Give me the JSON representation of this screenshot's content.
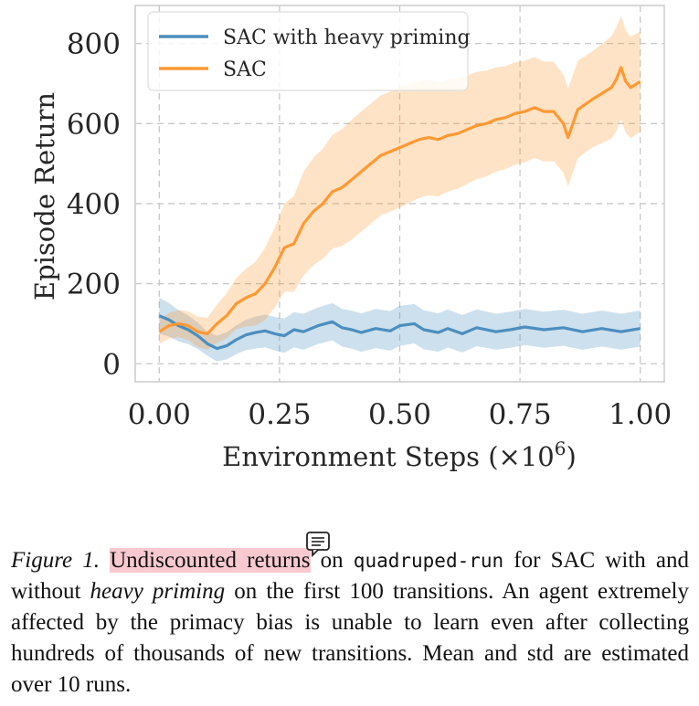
{
  "chart_data": {
    "type": "line",
    "xlabel": "Environment Steps (×10",
    "xlabel_exp": "6",
    "xlabel_close": ")",
    "ylabel": "Episode Return",
    "xlim": [
      -0.05,
      1.05
    ],
    "ylim": [
      -45,
      895
    ],
    "xticks": [
      0.0,
      0.25,
      0.5,
      0.75,
      1.0
    ],
    "xtick_labels": [
      "0.00",
      "0.25",
      "0.50",
      "0.75",
      "1.00"
    ],
    "yticks": [
      0,
      200,
      400,
      600,
      800
    ],
    "ytick_labels": [
      "0",
      "200",
      "400",
      "600",
      "800"
    ],
    "grid": true,
    "legend_position": "top-left",
    "series": [
      {
        "name": "SAC with heavy priming",
        "color": "#4c8ebf",
        "points": [
          [
            0.0,
            120
          ],
          [
            0.02,
            110
          ],
          [
            0.04,
            95
          ],
          [
            0.06,
            85
          ],
          [
            0.08,
            70
          ],
          [
            0.1,
            50
          ],
          [
            0.12,
            38
          ],
          [
            0.14,
            45
          ],
          [
            0.16,
            60
          ],
          [
            0.18,
            72
          ],
          [
            0.2,
            78
          ],
          [
            0.22,
            82
          ],
          [
            0.24,
            75
          ],
          [
            0.26,
            70
          ],
          [
            0.28,
            85
          ],
          [
            0.3,
            80
          ],
          [
            0.33,
            95
          ],
          [
            0.36,
            105
          ],
          [
            0.38,
            90
          ],
          [
            0.4,
            85
          ],
          [
            0.42,
            78
          ],
          [
            0.45,
            88
          ],
          [
            0.48,
            82
          ],
          [
            0.5,
            95
          ],
          [
            0.53,
            100
          ],
          [
            0.55,
            85
          ],
          [
            0.58,
            78
          ],
          [
            0.6,
            88
          ],
          [
            0.63,
            75
          ],
          [
            0.66,
            90
          ],
          [
            0.7,
            80
          ],
          [
            0.73,
            85
          ],
          [
            0.76,
            92
          ],
          [
            0.8,
            85
          ],
          [
            0.84,
            90
          ],
          [
            0.88,
            80
          ],
          [
            0.92,
            88
          ],
          [
            0.96,
            80
          ],
          [
            1.0,
            88
          ]
        ],
        "std": [
          [
            0.0,
            45
          ],
          [
            0.1,
            30
          ],
          [
            0.2,
            40
          ],
          [
            0.3,
            45
          ],
          [
            0.5,
            50
          ],
          [
            0.7,
            45
          ],
          [
            0.9,
            45
          ],
          [
            1.0,
            45
          ]
        ]
      },
      {
        "name": "SAC",
        "color": "#ff9933",
        "points": [
          [
            0.0,
            80
          ],
          [
            0.02,
            95
          ],
          [
            0.04,
            100
          ],
          [
            0.06,
            95
          ],
          [
            0.08,
            80
          ],
          [
            0.1,
            75
          ],
          [
            0.12,
            100
          ],
          [
            0.14,
            120
          ],
          [
            0.16,
            150
          ],
          [
            0.18,
            165
          ],
          [
            0.2,
            175
          ],
          [
            0.22,
            200
          ],
          [
            0.24,
            240
          ],
          [
            0.26,
            290
          ],
          [
            0.28,
            300
          ],
          [
            0.3,
            350
          ],
          [
            0.32,
            380
          ],
          [
            0.34,
            400
          ],
          [
            0.36,
            430
          ],
          [
            0.38,
            440
          ],
          [
            0.4,
            460
          ],
          [
            0.42,
            480
          ],
          [
            0.44,
            500
          ],
          [
            0.46,
            520
          ],
          [
            0.48,
            530
          ],
          [
            0.5,
            540
          ],
          [
            0.52,
            550
          ],
          [
            0.54,
            560
          ],
          [
            0.56,
            565
          ],
          [
            0.58,
            560
          ],
          [
            0.6,
            570
          ],
          [
            0.62,
            575
          ],
          [
            0.64,
            585
          ],
          [
            0.66,
            595
          ],
          [
            0.68,
            600
          ],
          [
            0.7,
            610
          ],
          [
            0.72,
            615
          ],
          [
            0.74,
            625
          ],
          [
            0.76,
            630
          ],
          [
            0.78,
            640
          ],
          [
            0.8,
            630
          ],
          [
            0.82,
            630
          ],
          [
            0.84,
            600
          ],
          [
            0.85,
            565
          ],
          [
            0.87,
            635
          ],
          [
            0.9,
            660
          ],
          [
            0.92,
            675
          ],
          [
            0.94,
            690
          ],
          [
            0.95,
            710
          ],
          [
            0.96,
            740
          ],
          [
            0.97,
            705
          ],
          [
            0.98,
            690
          ],
          [
            1.0,
            705
          ]
        ],
        "std": [
          [
            0.0,
            30
          ],
          [
            0.1,
            40
          ],
          [
            0.2,
            80
          ],
          [
            0.3,
            130
          ],
          [
            0.4,
            150
          ],
          [
            0.5,
            150
          ],
          [
            0.6,
            140
          ],
          [
            0.7,
            130
          ],
          [
            0.8,
            125
          ],
          [
            0.9,
            120
          ],
          [
            0.95,
            130
          ],
          [
            1.0,
            125
          ]
        ]
      }
    ]
  },
  "caption": {
    "figure_label": "Figure 1.",
    "highlighted": "Undiscounted returns",
    "text_1": " on ",
    "env_name": "quadruped-run",
    "text_2": " for SAC with and without ",
    "emph": "heavy priming",
    "text_3": " on the first 100 transitions. An agent extremely affected by the primacy bias is unable to learn even after collecting hundreds of thousands of new transitions. Mean and std are estimated over 10 runs."
  }
}
